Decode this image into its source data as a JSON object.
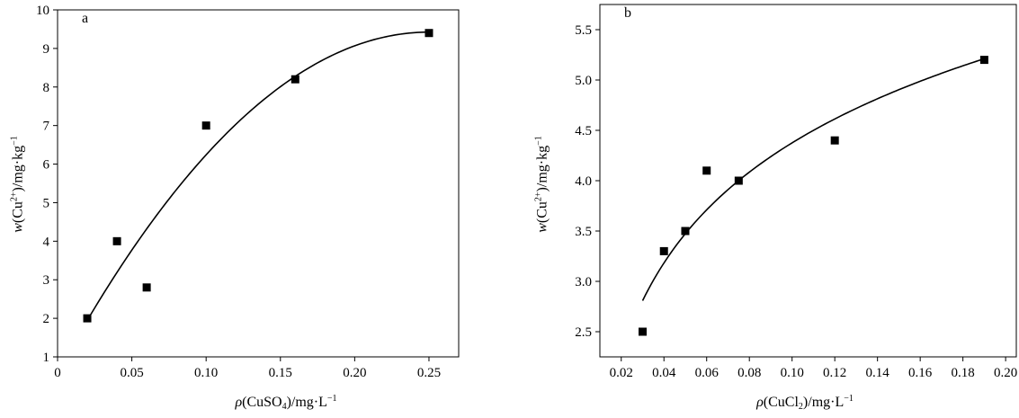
{
  "chart_data": [
    {
      "type": "scatter",
      "panel_label": "a",
      "x": [
        0.02,
        0.04,
        0.06,
        0.1,
        0.16,
        0.25
      ],
      "y": [
        2.0,
        4.0,
        2.8,
        7.0,
        8.2,
        9.4
      ],
      "fit_curve": "quadratic",
      "xlim": [
        0,
        0.27
      ],
      "ylim": [
        1,
        10
      ],
      "xticks": [
        "0",
        "0.05",
        "0.10",
        "0.15",
        "0.20",
        "0.25"
      ],
      "xtick_values": [
        0,
        0.05,
        0.1,
        0.15,
        0.2,
        0.25
      ],
      "yticks": [
        "1",
        "2",
        "3",
        "4",
        "5",
        "6",
        "7",
        "8",
        "9",
        "10"
      ],
      "ytick_values": [
        1,
        2,
        3,
        4,
        5,
        6,
        7,
        8,
        9,
        10
      ],
      "xlabel": {
        "sym": "ρ",
        "pre": "(CuSO",
        "sub": "4",
        "post": ")/mg·L",
        "sup": "−1"
      },
      "ylabel": {
        "sym": "w",
        "pre": "(Cu",
        "sup1": "2+",
        "mid": ")/mg·kg",
        "sup2": "−1"
      },
      "grid": false
    },
    {
      "type": "scatter",
      "panel_label": "b",
      "x": [
        0.03,
        0.04,
        0.05,
        0.06,
        0.075,
        0.12,
        0.19
      ],
      "y": [
        2.5,
        3.3,
        3.5,
        4.1,
        4.0,
        4.4,
        5.2
      ],
      "fit_curve": "logarithmic",
      "xlim": [
        0.01,
        0.205
      ],
      "ylim": [
        2.25,
        5.75
      ],
      "xticks": [
        "0.02",
        "0.04",
        "0.06",
        "0.08",
        "0.10",
        "0.12",
        "0.14",
        "0.16",
        "0.18",
        "0.20"
      ],
      "xtick_values": [
        0.02,
        0.04,
        0.06,
        0.08,
        0.1,
        0.12,
        0.14,
        0.16,
        0.18,
        0.2
      ],
      "yticks": [
        "2.5",
        "3.0",
        "3.5",
        "4.0",
        "4.5",
        "5.0",
        "5.5"
      ],
      "ytick_values": [
        2.5,
        3.0,
        3.5,
        4.0,
        4.5,
        5.0,
        5.5
      ],
      "xlabel": {
        "sym": "ρ",
        "pre": "(CuCl",
        "sub": "2",
        "post": ")/mg·L",
        "sup": "−1"
      },
      "ylabel": {
        "sym": "w",
        "pre": "(Cu",
        "sup1": "2+",
        "mid": ")/mg·kg",
        "sup2": "−1"
      },
      "grid": false
    }
  ]
}
